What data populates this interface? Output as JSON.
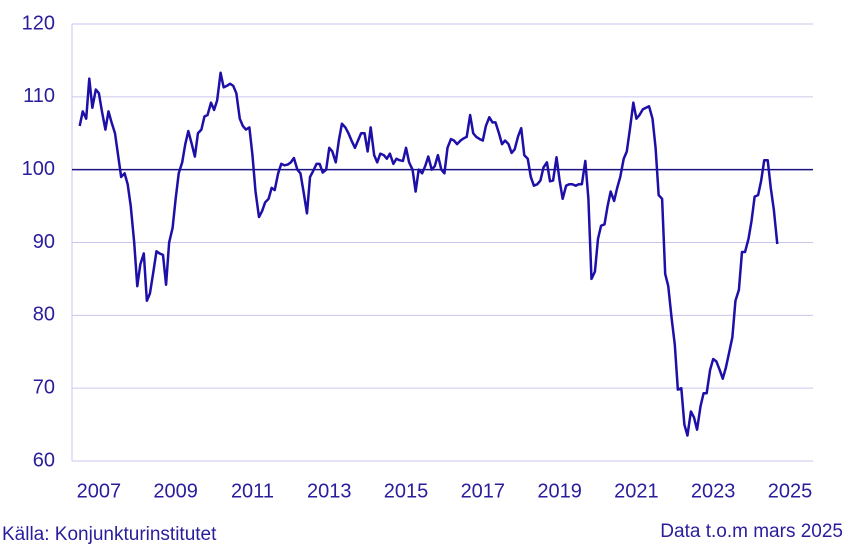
{
  "chart_data": {
    "type": "line",
    "source": "Källa: Konjunkturinstitutet",
    "note": "Data t.o.m mars 2025",
    "ylim": [
      60,
      120
    ],
    "yticks": [
      60,
      70,
      80,
      90,
      100,
      110,
      120
    ],
    "xlim": [
      2006.8,
      2026.1
    ],
    "xticks": [
      {
        "value": 2007.5,
        "label": "2007"
      },
      {
        "value": 2009.5,
        "label": "2009"
      },
      {
        "value": 2011.5,
        "label": "2011"
      },
      {
        "value": 2013.5,
        "label": "2013"
      },
      {
        "value": 2015.5,
        "label": "2015"
      },
      {
        "value": 2017.5,
        "label": "2017"
      },
      {
        "value": 2019.5,
        "label": "2019"
      },
      {
        "value": 2021.5,
        "label": "2021"
      },
      {
        "value": 2023.5,
        "label": "2023"
      },
      {
        "value": 2025.5,
        "label": "2025"
      }
    ],
    "grid": true,
    "hline": 100,
    "hline_color": "#1e1280",
    "grid_color": "#c9c6ec",
    "x": [
      2007,
      2007.08,
      2007.17,
      2007.25,
      2007.33,
      2007.42,
      2007.5,
      2007.58,
      2007.67,
      2007.75,
      2007.83,
      2007.92,
      2008,
      2008.08,
      2008.17,
      2008.25,
      2008.33,
      2008.42,
      2008.5,
      2008.58,
      2008.67,
      2008.75,
      2008.83,
      2008.92,
      2009,
      2009.08,
      2009.17,
      2009.25,
      2009.33,
      2009.42,
      2009.5,
      2009.58,
      2009.67,
      2009.75,
      2009.83,
      2009.92,
      2010,
      2010.08,
      2010.17,
      2010.25,
      2010.33,
      2010.42,
      2010.5,
      2010.58,
      2010.67,
      2010.75,
      2010.83,
      2010.92,
      2011,
      2011.08,
      2011.17,
      2011.25,
      2011.33,
      2011.42,
      2011.5,
      2011.58,
      2011.67,
      2011.75,
      2011.83,
      2011.92,
      2012,
      2012.08,
      2012.17,
      2012.25,
      2012.33,
      2012.42,
      2012.5,
      2012.58,
      2012.67,
      2012.75,
      2012.83,
      2012.92,
      2013,
      2013.08,
      2013.17,
      2013.25,
      2013.33,
      2013.42,
      2013.5,
      2013.58,
      2013.67,
      2013.75,
      2013.83,
      2013.92,
      2014,
      2014.08,
      2014.17,
      2014.25,
      2014.33,
      2014.42,
      2014.5,
      2014.58,
      2014.67,
      2014.75,
      2014.83,
      2014.92,
      2015,
      2015.08,
      2015.17,
      2015.25,
      2015.33,
      2015.42,
      2015.5,
      2015.58,
      2015.67,
      2015.75,
      2015.83,
      2015.92,
      2016,
      2016.08,
      2016.17,
      2016.25,
      2016.33,
      2016.42,
      2016.5,
      2016.58,
      2016.67,
      2016.75,
      2016.83,
      2016.92,
      2017,
      2017.08,
      2017.17,
      2017.25,
      2017.33,
      2017.42,
      2017.5,
      2017.58,
      2017.67,
      2017.75,
      2017.83,
      2017.92,
      2018,
      2018.08,
      2018.17,
      2018.25,
      2018.33,
      2018.42,
      2018.5,
      2018.58,
      2018.67,
      2018.75,
      2018.83,
      2018.92,
      2019,
      2019.08,
      2019.17,
      2019.25,
      2019.33,
      2019.42,
      2019.5,
      2019.58,
      2019.67,
      2019.75,
      2019.83,
      2019.92,
      2020,
      2020.08,
      2020.17,
      2020.25,
      2020.33,
      2020.42,
      2020.5,
      2020.58,
      2020.67,
      2020.75,
      2020.83,
      2020.92,
      2021,
      2021.08,
      2021.17,
      2021.25,
      2021.33,
      2021.42,
      2021.5,
      2021.58,
      2021.67,
      2021.75,
      2021.83,
      2021.92,
      2022,
      2022.08,
      2022.17,
      2022.25,
      2022.33,
      2022.42,
      2022.5,
      2022.58,
      2022.67,
      2022.75,
      2022.83,
      2022.92,
      2023,
      2023.08,
      2023.17,
      2023.25,
      2023.33,
      2023.42,
      2023.5,
      2023.58,
      2023.67,
      2023.75,
      2023.83,
      2023.92,
      2024,
      2024.08,
      2024.17,
      2024.25,
      2024.33,
      2024.42,
      2024.5,
      2024.58,
      2024.67,
      2024.75,
      2024.83,
      2024.92,
      2025,
      2025.08,
      2025.17
    ],
    "color": "#1d0fa8",
    "values": [
      106,
      108,
      107,
      112.5,
      108.5,
      111,
      110.5,
      108,
      105.5,
      108,
      106.5,
      105,
      102,
      99,
      99.5,
      98,
      95,
      90,
      84,
      87,
      88.5,
      82,
      83,
      86,
      88.8,
      88.5,
      88.3,
      84.2,
      90,
      92,
      96,
      99.5,
      101,
      103.5,
      105.3,
      103.5,
      101.8,
      105,
      105.5,
      107.3,
      107.5,
      109.2,
      108.2,
      109.5,
      113.3,
      111.3,
      111.5,
      111.8,
      111.5,
      110.5,
      107,
      106,
      105.5,
      105.8,
      102,
      97,
      93.5,
      94.3,
      95.5,
      96,
      97.5,
      97.2,
      99.5,
      100.8,
      100.6,
      100.7,
      101,
      101.6,
      100,
      99.5,
      97,
      94,
      99,
      99.8,
      100.8,
      100.8,
      99.6,
      100,
      103,
      102.5,
      101,
      104,
      106.3,
      105.8,
      105,
      104,
      103,
      104,
      105,
      105,
      102.5,
      105.8,
      102,
      101,
      102.2,
      102,
      101.5,
      102.2,
      100.8,
      101.5,
      101.3,
      101.2,
      103,
      101,
      100,
      97,
      100,
      99.5,
      100.5,
      101.8,
      100,
      100.5,
      102,
      100,
      99.5,
      103,
      104.2,
      104,
      103.5,
      104,
      104.3,
      104.5,
      107.5,
      105,
      104.5,
      104.2,
      104,
      106,
      107.2,
      106.5,
      106.5,
      105,
      103.5,
      104,
      103.5,
      102.3,
      102.8,
      104.6,
      105.7,
      102,
      101.5,
      99,
      97.8,
      98,
      98.5,
      100.3,
      101,
      98.4,
      98.5,
      101.7,
      98.5,
      96,
      97.8,
      98,
      98,
      97.8,
      98,
      98,
      101.2,
      96,
      85,
      86,
      90.5,
      92.3,
      92.5,
      95,
      97,
      95.7,
      97.5,
      99,
      101.5,
      102.5,
      105.5,
      109.2,
      107,
      107.5,
      108.3,
      108.5,
      108.7,
      107,
      103,
      96.5,
      96,
      85.7,
      84,
      79.5,
      76,
      69.8,
      70,
      65,
      63.5,
      66.8,
      66,
      64.3,
      67.5,
      69.3,
      69.3,
      72.5,
      74,
      73.7,
      72.5,
      71.3,
      72.8,
      75,
      77,
      82,
      83.5,
      88.7,
      88.7,
      90.5,
      93,
      96.3,
      96.5,
      98.5,
      101.3,
      101.3,
      97.5,
      94.5,
      89.8
    ]
  }
}
